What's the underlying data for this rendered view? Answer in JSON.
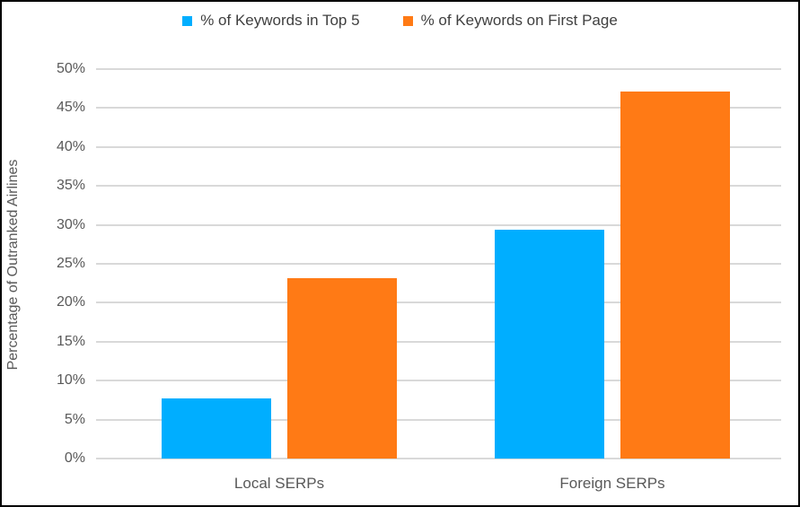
{
  "chart_data": {
    "type": "bar",
    "title": "",
    "xlabel": "",
    "ylabel": "Percentage of Outranked Airlines",
    "categories": [
      "Local SERPs",
      "Foreign SERPs"
    ],
    "series": [
      {
        "name": "% of Keywords in Top 5",
        "color": "#00AEFF",
        "values": [
          7.7,
          29.4
        ]
      },
      {
        "name": "% of Keywords on First Page",
        "color": "#FF7A15",
        "values": [
          23.1,
          47.1
        ]
      }
    ],
    "ylim": [
      0,
      50
    ],
    "ytick_step": 5,
    "yticks": [
      "0%",
      "5%",
      "10%",
      "15%",
      "20%",
      "25%",
      "30%",
      "35%",
      "40%",
      "45%",
      "50%"
    ],
    "grid": true,
    "legend_position": "top",
    "colors": {
      "gridline": "#D9D9D9",
      "axis_text": "#595959",
      "legend_text": "#3F3F3F",
      "background": "#FFFFFF",
      "frame_border": "#000000"
    }
  }
}
